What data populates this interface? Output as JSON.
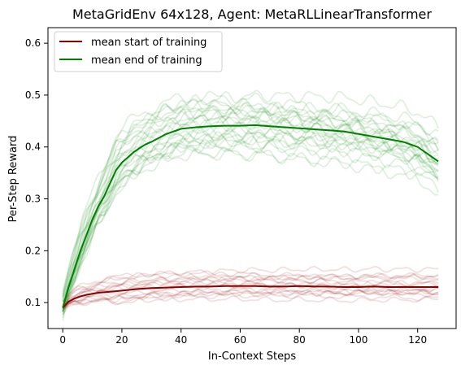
{
  "chart_data": {
    "type": "line",
    "title": "MetaGridEnv 64x128, Agent: MetaRLLinearTransformer",
    "xlabel": "In-Context Steps",
    "ylabel": "Per-Step Reward",
    "xlim": [
      -5,
      133
    ],
    "ylim": [
      0.05,
      0.63
    ],
    "x_ticks": [
      0,
      20,
      40,
      60,
      80,
      100,
      120
    ],
    "y_ticks": [
      0.1,
      0.2,
      0.3,
      0.4,
      0.5,
      0.6
    ],
    "legend_position": "upper-left",
    "series": [
      {
        "name": "mean start of training",
        "color": "#8b0000",
        "x": [
          0,
          2,
          4,
          6,
          8,
          10,
          12,
          14,
          16,
          18,
          20,
          25,
          30,
          35,
          40,
          45,
          50,
          55,
          60,
          65,
          70,
          75,
          80,
          85,
          90,
          95,
          100,
          105,
          110,
          115,
          120,
          125,
          127
        ],
        "y": [
          0.09,
          0.102,
          0.108,
          0.112,
          0.115,
          0.117,
          0.119,
          0.12,
          0.121,
          0.122,
          0.123,
          0.126,
          0.128,
          0.129,
          0.13,
          0.131,
          0.131,
          0.132,
          0.132,
          0.132,
          0.131,
          0.131,
          0.132,
          0.131,
          0.131,
          0.13,
          0.13,
          0.131,
          0.13,
          0.13,
          0.13,
          0.13,
          0.13
        ]
      },
      {
        "name": "mean end of training",
        "color": "#008000",
        "x": [
          0,
          2,
          4,
          6,
          8,
          10,
          12,
          14,
          16,
          18,
          20,
          22,
          24,
          26,
          28,
          30,
          35,
          40,
          45,
          50,
          55,
          60,
          65,
          70,
          75,
          80,
          85,
          90,
          95,
          100,
          105,
          110,
          115,
          120,
          125,
          127
        ],
        "y": [
          0.09,
          0.13,
          0.165,
          0.2,
          0.23,
          0.26,
          0.285,
          0.305,
          0.33,
          0.355,
          0.37,
          0.38,
          0.39,
          0.398,
          0.405,
          0.41,
          0.425,
          0.435,
          0.438,
          0.44,
          0.441,
          0.441,
          0.442,
          0.44,
          0.438,
          0.436,
          0.434,
          0.432,
          0.43,
          0.425,
          0.42,
          0.415,
          0.41,
          0.4,
          0.38,
          0.372
        ]
      }
    ]
  }
}
